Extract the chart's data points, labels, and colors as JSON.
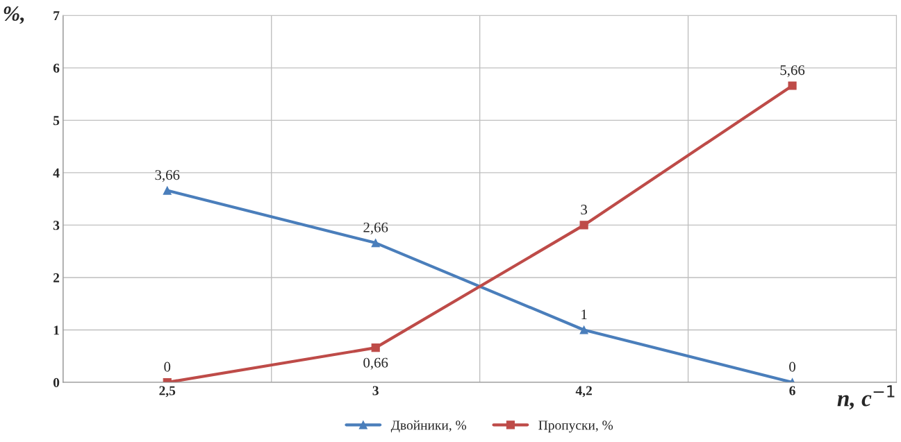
{
  "chart_data": {
    "type": "line",
    "ylabel": "%,",
    "xlabel": "n, с$^{−1}$",
    "categories": [
      "2,5",
      "3",
      "4,2",
      "6"
    ],
    "series": [
      {
        "name": "Двойники, %",
        "color": "#4a7ebb",
        "marker": "triangle",
        "values": [
          3.66,
          2.66,
          1,
          0
        ],
        "value_labels": [
          "3,66",
          "2,66",
          "1",
          "0"
        ]
      },
      {
        "name": "Пропуски, %",
        "color": "#be4b48",
        "marker": "square",
        "values": [
          0,
          0.66,
          3,
          5.66
        ],
        "value_labels": [
          "0",
          "0,66",
          "3",
          "5,66"
        ]
      }
    ],
    "ylim": [
      0,
      7
    ],
    "yticks": [
      0,
      1,
      2,
      3,
      4,
      5,
      6,
      7
    ],
    "grid": true,
    "legend": "bottom",
    "line_style": "solid"
  }
}
